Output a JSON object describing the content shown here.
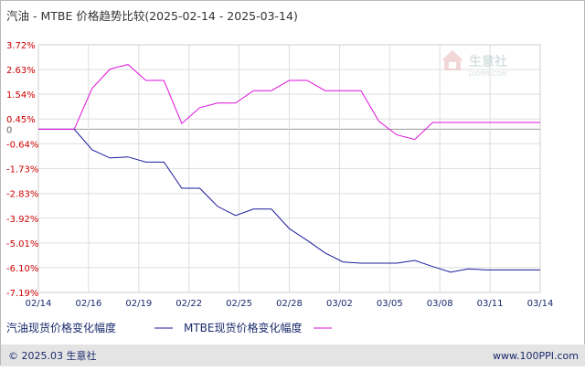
{
  "colors": {
    "series_a": "#1a1a9c",
    "series_b": "#dd11dd",
    "axis_text": "#cc0000",
    "tick_text": "#1a2a6c",
    "grid": "#dddddd",
    "footer_bg": "#e4e4e4"
  },
  "chart_data": {
    "type": "line",
    "title": "汽油 - MTBE 价格趋势比较(2025-02-14 - 2025-03-14)",
    "xlabel": "",
    "ylabel": "",
    "x_ticks": [
      "02/14",
      "02/16",
      "02/19",
      "02/22",
      "02/25",
      "02/28",
      "03/02",
      "03/05",
      "03/08",
      "03/11",
      "03/14"
    ],
    "y_ticks": [
      "3.72%",
      "2.63%",
      "1.54%",
      "0.45%",
      "0",
      "-0.64%",
      "-1.73%",
      "-2.83%",
      "-3.92%",
      "-5.01%",
      "-6.10%",
      "-7.19%"
    ],
    "ylim": [
      -7.19,
      3.72
    ],
    "xlim": [
      0,
      28
    ],
    "grid": true,
    "legend_position": "bottom-left",
    "series": [
      {
        "name": "汽油现货价格变化幅度",
        "x": [
          0,
          2,
          3,
          4,
          5,
          6,
          7,
          8,
          9,
          10,
          11,
          12,
          13,
          14,
          15,
          16,
          17,
          18,
          19,
          20,
          21,
          22,
          23,
          24,
          25,
          26,
          27,
          28
        ],
        "y": [
          0,
          0,
          -0.91,
          -1.27,
          -1.22,
          -1.45,
          -1.45,
          -2.6,
          -2.6,
          -3.4,
          -3.8,
          -3.52,
          -3.52,
          -4.38,
          -4.9,
          -5.45,
          -5.85,
          -5.9,
          -5.9,
          -5.9,
          -5.78,
          -6.05,
          -6.3,
          -6.15,
          -6.2,
          -6.2,
          -6.2,
          -6.2
        ]
      },
      {
        "name": "MTBE现货价格变化幅度",
        "x": [
          0,
          2,
          3,
          4,
          5,
          6,
          7,
          8,
          9,
          10,
          11,
          12,
          13,
          14,
          15,
          16,
          17,
          18,
          19,
          20,
          21,
          22,
          23,
          24,
          25,
          26,
          27,
          28
        ],
        "y": [
          0,
          0,
          1.8,
          2.65,
          2.85,
          2.15,
          2.15,
          0.25,
          0.95,
          1.15,
          1.15,
          1.7,
          1.7,
          2.15,
          2.15,
          1.7,
          1.7,
          1.7,
          0.35,
          -0.25,
          -0.45,
          0.3,
          0.3,
          0.3,
          0.3,
          0.3,
          0.3,
          0.3
        ]
      }
    ]
  },
  "watermark": {
    "brand": "生意社",
    "url": "100PPI.COM"
  },
  "footer": {
    "left": "© 2025.03 生意社",
    "right": "www.100PPI.com"
  }
}
